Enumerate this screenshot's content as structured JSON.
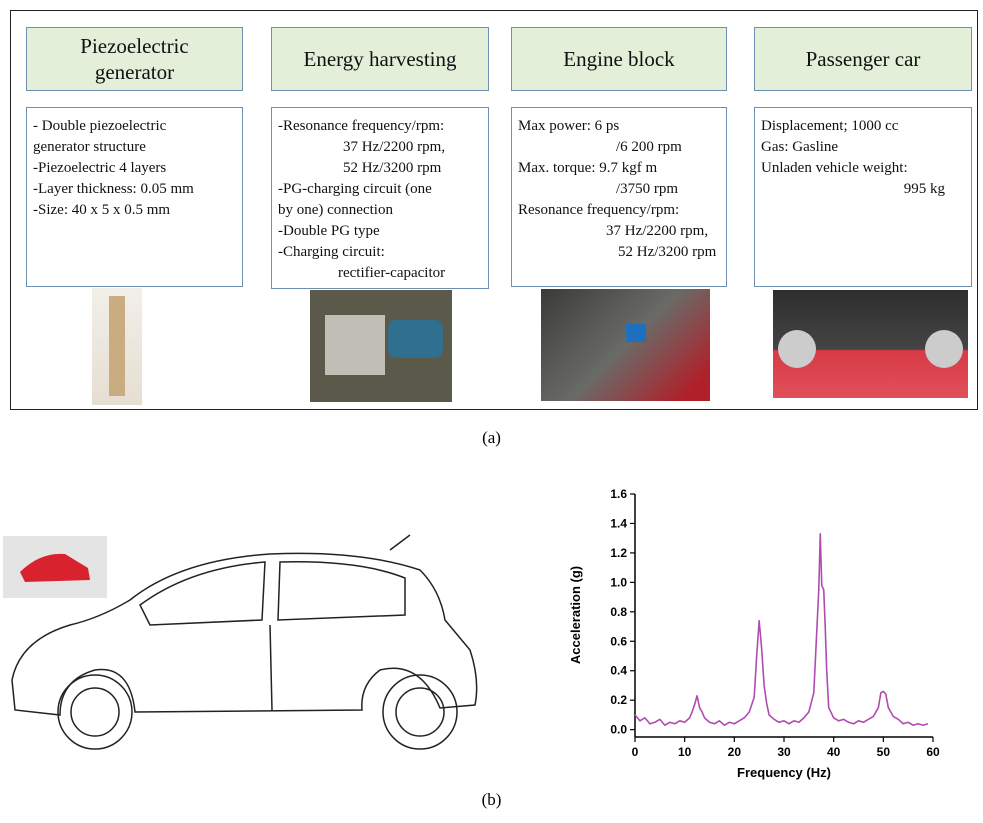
{
  "panel_a": {
    "columns": [
      {
        "header": "Piezoelectric generator",
        "lines": [
          "- Double piezoelectric",
          "generator structure",
          "-Piezoelectric 4 layers",
          "-Layer thickness: 0.05 mm",
          "-Size: 40 x 5 x 0.5 mm"
        ]
      },
      {
        "header": "Energy harvesting",
        "lines": [
          "-Resonance frequency/rpm:",
          "37 Hz/2200 rpm,",
          "52 Hz/3200 rpm",
          "-PG-charging circuit (one",
          "by one) connection",
          "-Double PG type",
          "-Charging circuit:",
          "rectifier-capacitor"
        ]
      },
      {
        "header": "Engine block",
        "lines": [
          "Max power: 6 ps",
          "/6 200 rpm",
          "Max. torque: 9.7 kgf m",
          "/3750 rpm",
          "Resonance frequency/rpm:",
          "37 Hz/2200 rpm,",
          "52 Hz/3200 rpm"
        ]
      },
      {
        "header": "Passenger car",
        "lines": [
          "Displacement; 1000 cc",
          "Gas: Gasline",
          "Unladen vehicle weight:",
          "995 kg"
        ]
      }
    ],
    "label": "(a)"
  },
  "panel_b": {
    "label": "(b)"
  },
  "chart_data": {
    "type": "line",
    "xlabel": "Frequency (Hz)",
    "ylabel": "Acceleration (g)",
    "color": "#b04cb0",
    "x": [
      0,
      1,
      2,
      3,
      4,
      5,
      6,
      7,
      8,
      9,
      10,
      11,
      11.5,
      12,
      12.5,
      13,
      13.5,
      14,
      15,
      16,
      17,
      18,
      19,
      20,
      21,
      22,
      23,
      24,
      24.5,
      25,
      25.5,
      26,
      26.5,
      27,
      28,
      29,
      30,
      31,
      32,
      33,
      34,
      35,
      36,
      36.5,
      37,
      37.3,
      37.6,
      38,
      38.3,
      38.6,
      39,
      40,
      41,
      42,
      43,
      44,
      45,
      46,
      47,
      48,
      49,
      49.5,
      50,
      50.5,
      51,
      52,
      53,
      54,
      55,
      56,
      57,
      58,
      59
    ],
    "values": [
      0.1,
      0.06,
      0.08,
      0.04,
      0.05,
      0.07,
      0.03,
      0.05,
      0.04,
      0.06,
      0.05,
      0.08,
      0.12,
      0.17,
      0.23,
      0.15,
      0.12,
      0.08,
      0.05,
      0.04,
      0.06,
      0.03,
      0.05,
      0.04,
      0.06,
      0.08,
      0.12,
      0.22,
      0.5,
      0.74,
      0.55,
      0.3,
      0.18,
      0.1,
      0.07,
      0.05,
      0.06,
      0.04,
      0.06,
      0.05,
      0.08,
      0.12,
      0.25,
      0.6,
      0.95,
      1.33,
      0.98,
      0.95,
      0.7,
      0.4,
      0.15,
      0.08,
      0.06,
      0.07,
      0.05,
      0.04,
      0.06,
      0.05,
      0.07,
      0.09,
      0.15,
      0.25,
      0.26,
      0.24,
      0.15,
      0.09,
      0.07,
      0.04,
      0.05,
      0.03,
      0.04,
      0.03,
      0.04
    ],
    "xlim": [
      0,
      60
    ],
    "ylim": [
      -0.05,
      1.6
    ],
    "xticks": [
      0,
      10,
      20,
      30,
      40,
      50,
      60
    ],
    "yticks": [
      {
        "value": 0,
        "label": "0.0"
      },
      0.2,
      0.4,
      0.6,
      0.8,
      {
        "value": 1,
        "label": "1.0"
      },
      1.2,
      1.4,
      1.6
    ]
  }
}
